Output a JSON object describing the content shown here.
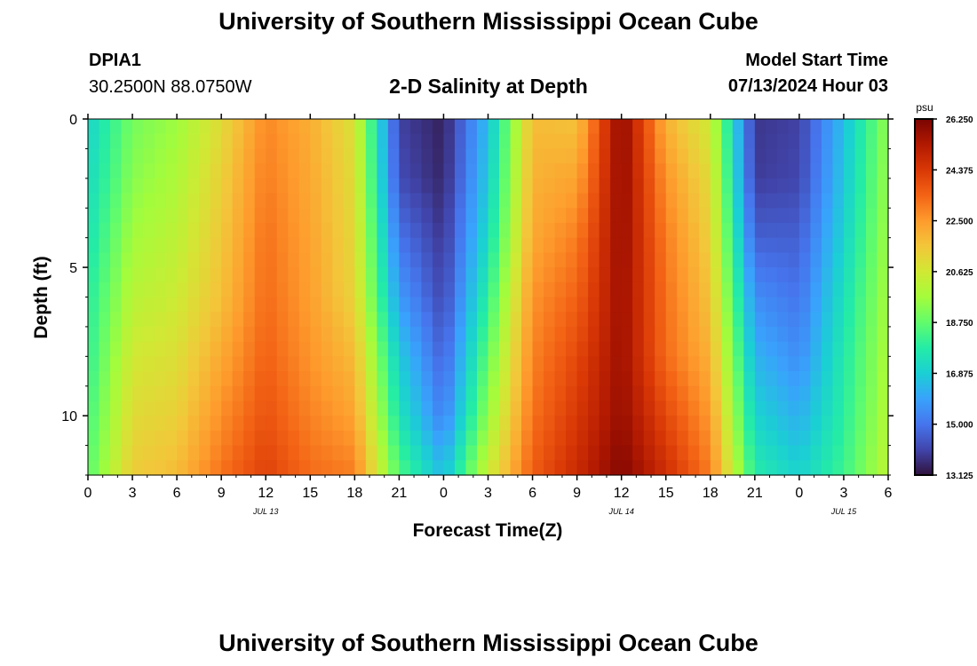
{
  "header": {
    "title": "University of Southern Mississippi Ocean Cube",
    "station": "DPIA1",
    "coords": "30.2500N  88.0750W",
    "subtitle": "2-D Salinity at Depth",
    "start_label": "Model Start Time",
    "start_value": "07/13/2024 Hour 03"
  },
  "footer": {
    "title": "University of Southern Mississippi Ocean Cube"
  },
  "chart_data": {
    "type": "heatmap",
    "title": "2-D Salinity at Depth",
    "xlabel": "Forecast Time(Z)",
    "ylabel": "Depth (ft)",
    "x_range_hours": [
      0,
      54
    ],
    "x_start_hour_of_day": 0,
    "ylim": [
      0,
      12
    ],
    "y_inverted": true,
    "x_ticks": [
      "0",
      "3",
      "6",
      "9",
      "12",
      "15",
      "18",
      "21",
      "0",
      "3",
      "6",
      "9",
      "12",
      "15",
      "18",
      "21",
      "0",
      "3",
      "6"
    ],
    "x_tick_hours": [
      0,
      3,
      6,
      9,
      12,
      15,
      18,
      21,
      24,
      27,
      30,
      33,
      36,
      39,
      42,
      45,
      48,
      51,
      54
    ],
    "y_ticks": [
      0,
      5,
      10
    ],
    "date_labels": [
      {
        "text": "JUL 13",
        "hour": 12
      },
      {
        "text": "JUL 14",
        "hour": 36
      },
      {
        "text": "JUL 15",
        "hour": 51
      }
    ],
    "colorbar": {
      "unit": "psu",
      "min": 13.125,
      "max": 26.25,
      "tick_labels": [
        "26.250",
        "24.375",
        "22.500",
        "20.625",
        "18.750",
        "16.875",
        "15.000",
        "13.125"
      ],
      "tick_values": [
        26.25,
        24.375,
        22.5,
        20.625,
        18.75,
        16.875,
        15.0,
        13.125
      ],
      "colormap": [
        "#30123b",
        "#4145ab",
        "#4675ed",
        "#39a2fc",
        "#1bcfd4",
        "#24eca6",
        "#61fc6c",
        "#a4fc3b",
        "#d1e834",
        "#f3c63a",
        "#fe9b2d",
        "#f36315",
        "#d93806",
        "#b11901",
        "#7a0402"
      ]
    },
    "depths_ft": [
      0,
      2,
      4,
      6,
      8,
      10,
      12
    ],
    "hours": [
      0,
      3,
      6,
      9,
      12,
      15,
      18,
      21,
      24,
      27,
      30,
      33,
      36,
      39,
      42,
      45,
      48,
      51,
      54
    ],
    "salinity": [
      [
        17.0,
        19.0,
        19.6,
        21.0,
        22.8,
        22.1,
        20.8,
        14.0,
        13.4,
        16.5,
        21.8,
        21.6,
        26.0,
        22.0,
        20.5,
        13.8,
        14.0,
        16.5,
        19.5
      ],
      [
        17.2,
        19.3,
        19.9,
        21.3,
        23.0,
        22.2,
        21.0,
        14.2,
        13.5,
        16.8,
        22.0,
        22.3,
        25.9,
        22.6,
        21.0,
        13.9,
        14.1,
        16.7,
        19.6
      ],
      [
        17.5,
        19.7,
        20.2,
        21.5,
        23.2,
        22.3,
        21.1,
        15.0,
        13.8,
        17.3,
        22.2,
        23.0,
        25.8,
        23.0,
        21.3,
        14.6,
        14.6,
        17.0,
        19.7
      ],
      [
        17.8,
        20.1,
        20.5,
        21.7,
        23.3,
        22.4,
        21.2,
        15.8,
        14.1,
        18.0,
        22.6,
        23.5,
        25.7,
        23.2,
        21.6,
        15.5,
        15.0,
        17.4,
        19.8
      ],
      [
        18.0,
        20.6,
        20.9,
        22.2,
        23.5,
        22.6,
        21.8,
        16.8,
        14.6,
        18.8,
        22.9,
        24.0,
        25.7,
        23.3,
        22.0,
        16.3,
        15.5,
        17.7,
        19.9
      ],
      [
        18.3,
        21.0,
        21.3,
        22.7,
        23.8,
        22.9,
        22.3,
        17.5,
        15.2,
        19.5,
        23.2,
        24.4,
        25.8,
        24.0,
        22.5,
        17.0,
        16.2,
        17.9,
        20.0
      ],
      [
        18.6,
        21.4,
        21.8,
        23.2,
        24.2,
        23.3,
        23.0,
        18.5,
        16.5,
        20.5,
        23.6,
        24.8,
        26.1,
        24.7,
        23.0,
        17.8,
        17.0,
        18.2,
        20.2
      ]
    ]
  }
}
